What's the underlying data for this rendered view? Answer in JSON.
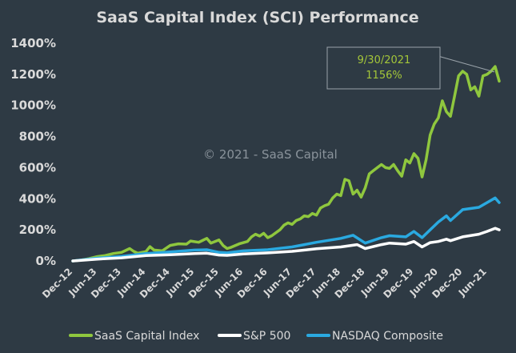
{
  "chart_data": {
    "type": "line",
    "title": "SaaS Capital Index (SCI) Performance",
    "watermark": "© 2021 - SaaS Capital",
    "ylim": [
      0,
      1400
    ],
    "yticks": [
      0,
      200,
      400,
      600,
      800,
      1000,
      1200,
      1400
    ],
    "ytick_labels": [
      "0%",
      "200%",
      "400%",
      "600%",
      "800%",
      "1000%",
      "1200%",
      "1400%"
    ],
    "x_start": "Dec-12",
    "x_end": "Sep-21",
    "xtick_labels": [
      "Dec-12",
      "Jun-13",
      "Dec-13",
      "Jun-14",
      "Dec-14",
      "Jun-15",
      "Dec-15",
      "Jun-16",
      "Dec-16",
      "Jun-17",
      "Dec-17",
      "Jun-18",
      "Dec-18",
      "Jun-19",
      "Dec-19",
      "Jun-20",
      "Dec-20",
      "Jun-21"
    ],
    "xtick_months": [
      0,
      6,
      12,
      18,
      24,
      30,
      36,
      42,
      48,
      54,
      60,
      66,
      72,
      78,
      84,
      90,
      96,
      102
    ],
    "annotation": {
      "date": "9/30/2021",
      "value": "1156%",
      "color": "#a4c639"
    },
    "series": [
      {
        "name": "SaaS Capital Index",
        "color": "#8fc73e",
        "points": [
          [
            0,
            0
          ],
          [
            2,
            5
          ],
          [
            4,
            15
          ],
          [
            6,
            28
          ],
          [
            8,
            35
          ],
          [
            10,
            48
          ],
          [
            12,
            55
          ],
          [
            14,
            80
          ],
          [
            15,
            62
          ],
          [
            16,
            50
          ],
          [
            18,
            60
          ],
          [
            19,
            92
          ],
          [
            20,
            70
          ],
          [
            22,
            65
          ],
          [
            24,
            100
          ],
          [
            26,
            110
          ],
          [
            28,
            108
          ],
          [
            29,
            128
          ],
          [
            31,
            120
          ],
          [
            33,
            145
          ],
          [
            34,
            115
          ],
          [
            36,
            135
          ],
          [
            37,
            100
          ],
          [
            38,
            80
          ],
          [
            39,
            88
          ],
          [
            41,
            110
          ],
          [
            43,
            125
          ],
          [
            44,
            155
          ],
          [
            45,
            172
          ],
          [
            46,
            160
          ],
          [
            47,
            178
          ],
          [
            48,
            150
          ],
          [
            49,
            162
          ],
          [
            51,
            200
          ],
          [
            52,
            230
          ],
          [
            53,
            245
          ],
          [
            54,
            235
          ],
          [
            55,
            260
          ],
          [
            56,
            270
          ],
          [
            57,
            290
          ],
          [
            58,
            285
          ],
          [
            59,
            305
          ],
          [
            60,
            295
          ],
          [
            61,
            340
          ],
          [
            62,
            355
          ],
          [
            63,
            365
          ],
          [
            64,
            405
          ],
          [
            65,
            430
          ],
          [
            66,
            420
          ],
          [
            67,
            525
          ],
          [
            68,
            515
          ],
          [
            69,
            430
          ],
          [
            70,
            455
          ],
          [
            71,
            410
          ],
          [
            72,
            470
          ],
          [
            73,
            560
          ],
          [
            74,
            580
          ],
          [
            75,
            600
          ],
          [
            76,
            620
          ],
          [
            77,
            600
          ],
          [
            78,
            595
          ],
          [
            79,
            620
          ],
          [
            80,
            580
          ],
          [
            81,
            545
          ],
          [
            82,
            650
          ],
          [
            83,
            630
          ],
          [
            84,
            690
          ],
          [
            85,
            660
          ],
          [
            86,
            540
          ],
          [
            87,
            650
          ],
          [
            88,
            810
          ],
          [
            89,
            880
          ],
          [
            90,
            920
          ],
          [
            91,
            1030
          ],
          [
            92,
            960
          ],
          [
            93,
            930
          ],
          [
            94,
            1060
          ],
          [
            95,
            1190
          ],
          [
            96,
            1220
          ],
          [
            97,
            1200
          ],
          [
            98,
            1100
          ],
          [
            99,
            1120
          ],
          [
            100,
            1060
          ],
          [
            101,
            1190
          ],
          [
            102,
            1200
          ],
          [
            103,
            1220
          ],
          [
            104,
            1250
          ],
          [
            105,
            1156
          ]
        ]
      },
      {
        "name": "S&P 500",
        "color": "#ffffff",
        "points": [
          [
            0,
            0
          ],
          [
            6,
            12
          ],
          [
            12,
            20
          ],
          [
            18,
            35
          ],
          [
            24,
            40
          ],
          [
            30,
            48
          ],
          [
            33,
            50
          ],
          [
            36,
            38
          ],
          [
            38,
            36
          ],
          [
            42,
            45
          ],
          [
            48,
            52
          ],
          [
            54,
            62
          ],
          [
            60,
            78
          ],
          [
            66,
            90
          ],
          [
            70,
            105
          ],
          [
            72,
            80
          ],
          [
            76,
            105
          ],
          [
            78,
            115
          ],
          [
            82,
            108
          ],
          [
            84,
            125
          ],
          [
            86,
            90
          ],
          [
            88,
            118
          ],
          [
            90,
            125
          ],
          [
            92,
            140
          ],
          [
            93,
            130
          ],
          [
            96,
            155
          ],
          [
            100,
            172
          ],
          [
            102,
            190
          ],
          [
            104,
            210
          ],
          [
            105,
            200
          ]
        ]
      },
      {
        "name": "NASDAQ Composite",
        "color": "#2aa9e0",
        "points": [
          [
            0,
            0
          ],
          [
            6,
            18
          ],
          [
            12,
            30
          ],
          [
            18,
            48
          ],
          [
            24,
            58
          ],
          [
            30,
            70
          ],
          [
            33,
            72
          ],
          [
            36,
            55
          ],
          [
            38,
            52
          ],
          [
            42,
            65
          ],
          [
            48,
            72
          ],
          [
            54,
            90
          ],
          [
            60,
            120
          ],
          [
            66,
            145
          ],
          [
            69,
            165
          ],
          [
            72,
            115
          ],
          [
            76,
            150
          ],
          [
            78,
            162
          ],
          [
            82,
            155
          ],
          [
            84,
            190
          ],
          [
            86,
            150
          ],
          [
            88,
            200
          ],
          [
            90,
            250
          ],
          [
            92,
            290
          ],
          [
            93,
            260
          ],
          [
            96,
            330
          ],
          [
            100,
            345
          ],
          [
            102,
            375
          ],
          [
            104,
            405
          ],
          [
            105,
            375
          ]
        ]
      }
    ],
    "legend_position": "bottom"
  }
}
